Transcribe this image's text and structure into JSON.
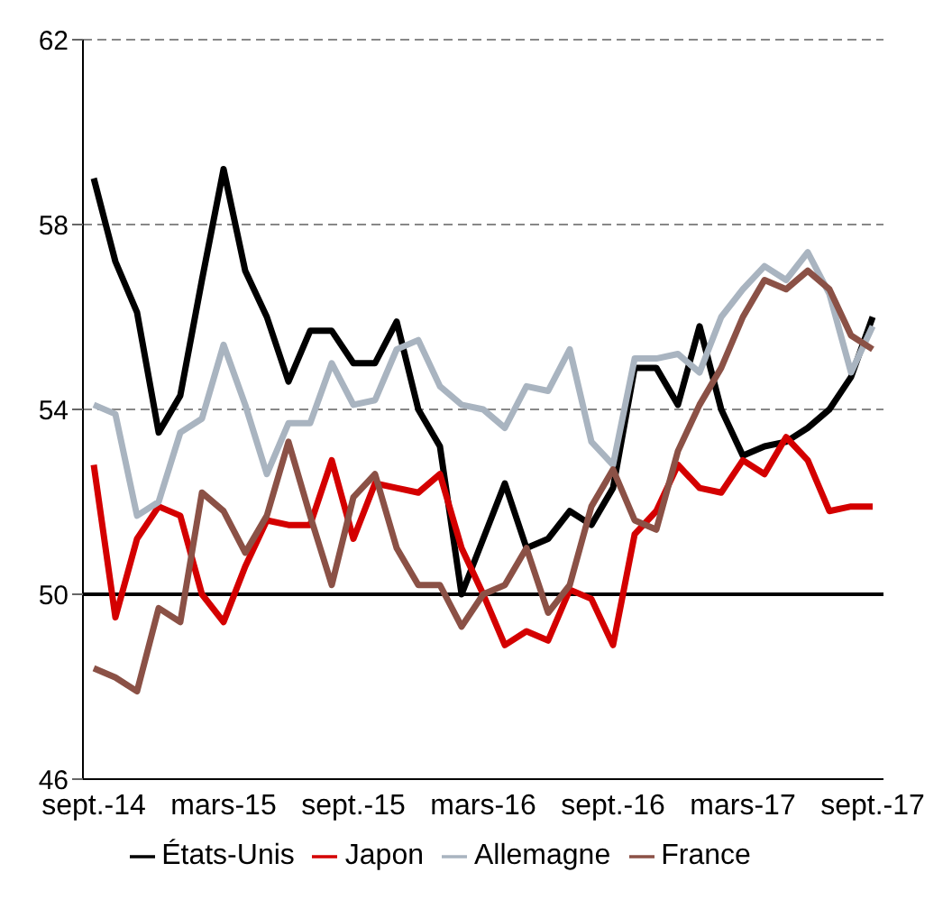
{
  "chart_data": {
    "type": "line",
    "categories": [
      "sept.-14",
      null,
      null,
      null,
      null,
      null,
      "mars-15",
      null,
      null,
      null,
      null,
      null,
      "sept.-15",
      null,
      null,
      null,
      null,
      null,
      "mars-16",
      null,
      null,
      null,
      null,
      null,
      "sept.-16",
      null,
      null,
      null,
      null,
      null,
      "mars-17",
      null,
      null,
      null,
      null,
      null,
      "sept.-17"
    ],
    "series": [
      {
        "name": "États-Unis",
        "color": "#000000",
        "values": [
          59.0,
          57.2,
          56.1,
          53.5,
          54.3,
          56.8,
          59.2,
          57.0,
          56.0,
          54.6,
          55.7,
          55.7,
          55.0,
          55.0,
          55.9,
          54.0,
          53.2,
          50.0,
          51.2,
          52.4,
          51.0,
          51.2,
          51.8,
          51.5,
          52.3,
          54.9,
          54.9,
          54.1,
          55.8,
          54.0,
          53.0,
          53.2,
          53.3,
          53.6,
          54.0,
          54.7,
          56.0
        ]
      },
      {
        "name": "Japon",
        "color": "#d40000",
        "values": [
          52.8,
          49.5,
          51.2,
          51.9,
          51.7,
          50.0,
          49.4,
          50.6,
          51.6,
          51.5,
          51.5,
          52.9,
          51.2,
          52.4,
          52.3,
          52.2,
          52.6,
          51.0,
          50.0,
          48.9,
          49.2,
          49.0,
          50.1,
          49.9,
          48.9,
          51.3,
          51.8,
          52.8,
          52.3,
          52.2,
          52.9,
          52.6,
          53.4,
          52.9,
          51.8,
          51.9,
          51.9
        ]
      },
      {
        "name": "Allemagne",
        "color": "#a9b4c0",
        "values": [
          54.1,
          53.9,
          51.7,
          52.0,
          53.5,
          53.8,
          55.4,
          54.1,
          52.6,
          53.7,
          53.7,
          55.0,
          54.1,
          54.2,
          55.3,
          55.5,
          54.5,
          54.1,
          54.0,
          53.6,
          54.5,
          54.4,
          55.3,
          53.3,
          52.8,
          55.1,
          55.1,
          55.2,
          54.8,
          56.0,
          56.6,
          57.1,
          56.8,
          57.4,
          56.5,
          54.8,
          55.8
        ]
      },
      {
        "name": "France",
        "color": "#8b5146",
        "values": [
          48.4,
          48.2,
          47.9,
          49.7,
          49.4,
          52.2,
          51.8,
          50.9,
          51.7,
          53.3,
          51.7,
          50.2,
          52.1,
          52.6,
          51.0,
          50.2,
          50.2,
          49.3,
          50.0,
          50.2,
          51.0,
          49.6,
          50.2,
          51.9,
          52.7,
          51.6,
          51.4,
          53.1,
          54.1,
          54.9,
          56.0,
          56.8,
          56.6,
          57.0,
          56.6,
          55.6,
          55.3
        ]
      }
    ],
    "ylim": [
      46,
      62
    ],
    "yticks": [
      46,
      50,
      54,
      58,
      62
    ],
    "grid": "y",
    "legend": "bottom",
    "marker": "none",
    "line_style": "solid",
    "ref_lines": [
      {
        "axis": "y",
        "value": 50,
        "color": "#000000",
        "line_style": "solid"
      }
    ]
  }
}
